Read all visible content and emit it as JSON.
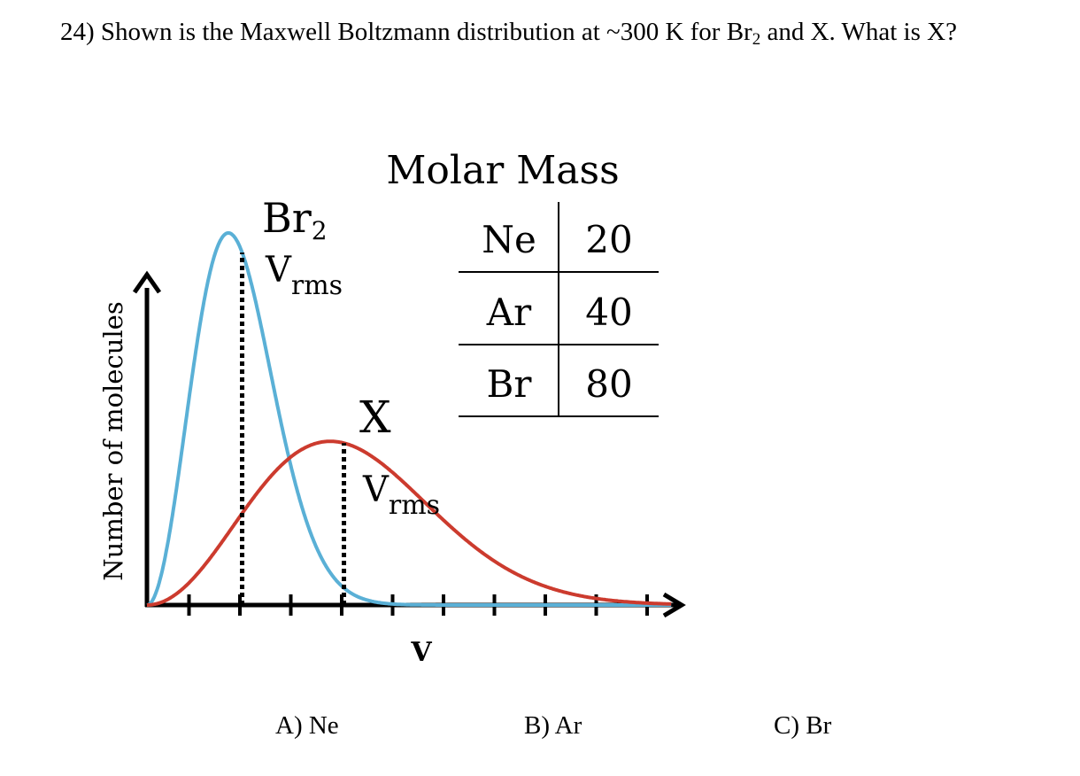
{
  "question": {
    "number": "24)",
    "text_before": "Shown is the Maxwell Boltzmann distribution at ~300 K for Br",
    "subscript": "2",
    "text_after": " and X.  What is X?"
  },
  "chart_data": {
    "type": "line",
    "xlabel": "V",
    "ylabel": "Number of molecules",
    "x_ticks": 10,
    "series": [
      {
        "name": "Br₂",
        "color": "#5ab0d6",
        "peak_tick": 1.6,
        "vrms_tick": 1.87,
        "label": "Br",
        "label_sub": "2",
        "vrms_label": "V",
        "vrms_sub": "rms"
      },
      {
        "name": "X",
        "color": "#cc3b2e",
        "peak_tick": 3.6,
        "vrms_tick": 3.87,
        "label": "X",
        "label_sub": "",
        "vrms_label": "V",
        "vrms_sub": "rms"
      }
    ],
    "table": {
      "title": "Molar Mass",
      "rows": [
        {
          "element": "Ne",
          "mass": "20"
        },
        {
          "element": "Ar",
          "mass": "40"
        },
        {
          "element": "Br",
          "mass": "80"
        }
      ]
    }
  },
  "answers": [
    {
      "letter": "A)",
      "choice": "Ne"
    },
    {
      "letter": "B)",
      "choice": "Ar"
    },
    {
      "letter": "C)",
      "choice": "Br"
    }
  ]
}
